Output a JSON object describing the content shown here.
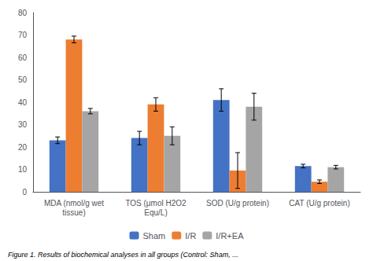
{
  "chart_data": {
    "type": "bar",
    "categories": [
      "MDA (nmol/g wet\ntissue)",
      "TOS (μmol H2O2\nEqu/L)",
      "SOD (U/g protein)",
      "CAT (U/g protein)"
    ],
    "series": [
      {
        "name": "Sham",
        "color": "#4472C4",
        "values": [
          23,
          24,
          41,
          11.5
        ],
        "errors": [
          1.5,
          3,
          5,
          0.8
        ]
      },
      {
        "name": "I/R",
        "color": "#ED7D31",
        "values": [
          68,
          39,
          9.5,
          4.5
        ],
        "errors": [
          1.5,
          3,
          8,
          0.8
        ]
      },
      {
        "name": "I/R+EA",
        "color": "#A5A5A5",
        "values": [
          36,
          25,
          38,
          11
        ],
        "errors": [
          1.2,
          4,
          6,
          0.8
        ]
      }
    ],
    "ylim": [
      0,
      80
    ],
    "yticks": [
      0,
      10,
      20,
      30,
      40,
      50,
      60,
      70,
      80
    ],
    "grid": false,
    "legend": "bottom",
    "caption": "Figure 1. Results of biochemical analyses in all groups (Control: Sham, ..."
  }
}
